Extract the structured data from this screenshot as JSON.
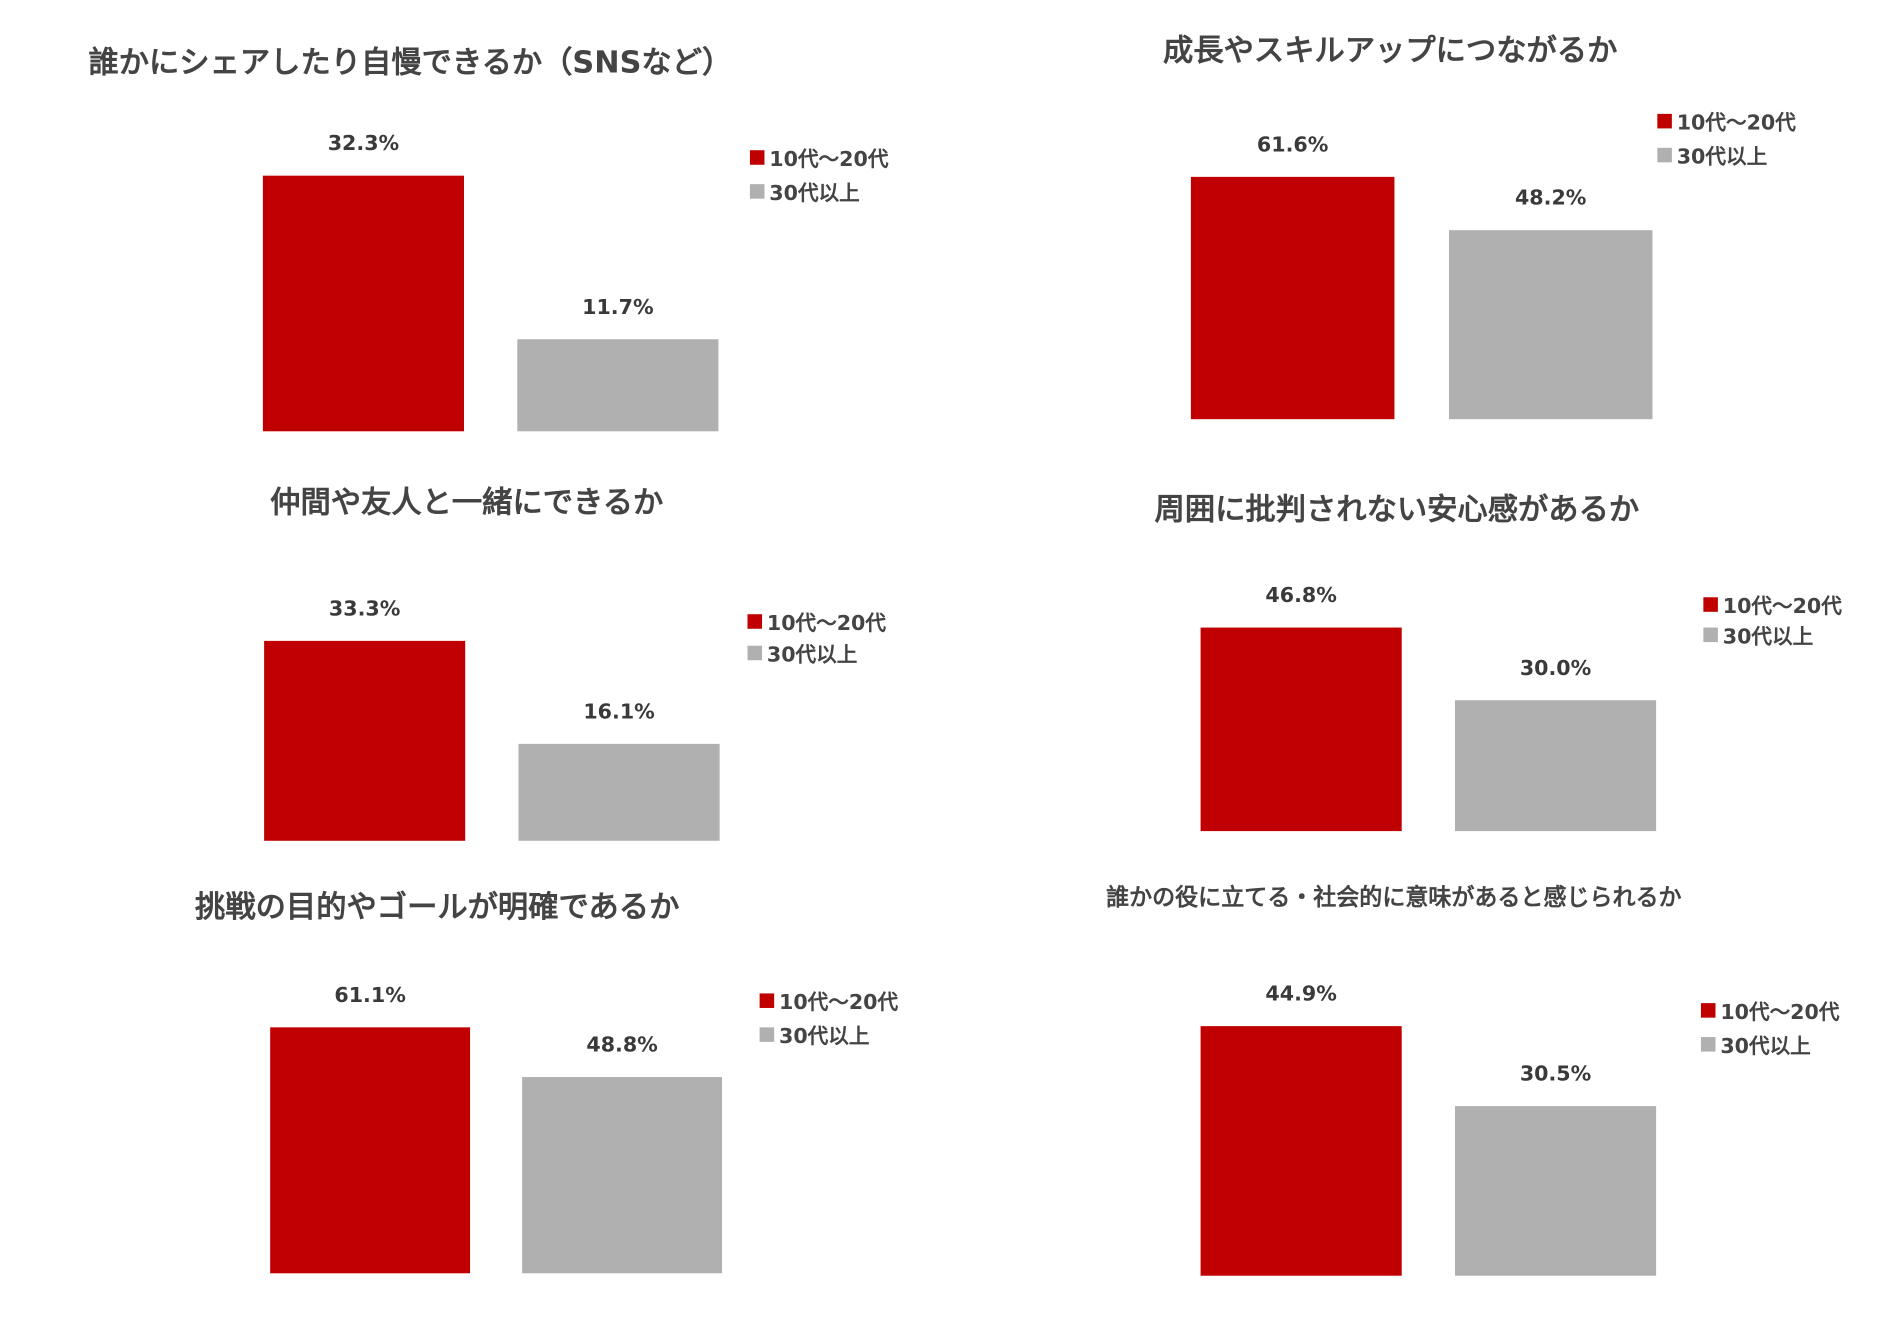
{
  "colors": {
    "young": "#c00000",
    "older": "#b0b0b0"
  },
  "chart_data": [
    {
      "type": "bar",
      "title": "誰かにシェアしたり自慢できるか（SNSなど）",
      "categories": [
        "10代～20代",
        "30代以上"
      ],
      "values": [
        32.3,
        11.7
      ],
      "labels": [
        "32.3%",
        "11.7%"
      ],
      "legend": [
        "10代～20代",
        "30代以上"
      ],
      "legend_placement": "right"
    },
    {
      "type": "bar",
      "title": "成長やスキルアップにつながるか",
      "categories": [
        "10代～20代",
        "30代以上"
      ],
      "values": [
        61.6,
        48.2
      ],
      "labels": [
        "61.6%",
        "48.2%"
      ],
      "legend": [
        "10代～20代",
        "30代以上"
      ],
      "legend_placement": "top-right"
    },
    {
      "type": "bar",
      "title": "仲間や友人と一緒にできるか",
      "categories": [
        "10代～20代",
        "30代以上"
      ],
      "values": [
        33.3,
        16.1
      ],
      "labels": [
        "33.3%",
        "16.1%"
      ],
      "legend": [
        "10代～20代",
        "30代以上"
      ],
      "legend_placement": "right"
    },
    {
      "type": "bar",
      "title": "周囲に批判されない安心感があるか",
      "categories": [
        "10代～20代",
        "30代以上"
      ],
      "values": [
        46.8,
        30.0
      ],
      "labels": [
        "46.8%",
        "30.0%"
      ],
      "legend": [
        "10代～20代",
        "30代以上"
      ],
      "legend_placement": "right"
    },
    {
      "type": "bar",
      "title": "挑戦の目的やゴールが明確であるか",
      "categories": [
        "10代～20代",
        "30代以上"
      ],
      "values": [
        61.1,
        48.8
      ],
      "labels": [
        "61.1%",
        "48.8%"
      ],
      "legend": [
        "10代～20代",
        "30代以上"
      ],
      "legend_placement": "right"
    },
    {
      "type": "bar",
      "title": "誰かの役に立てる・社会的に意味があると感じられるか",
      "categories": [
        "10代～20代",
        "30代以上"
      ],
      "values": [
        44.9,
        30.5
      ],
      "labels": [
        "44.9%",
        "30.5%"
      ],
      "legend": [
        "10代～20代",
        "30代以上"
      ],
      "legend_placement": "right"
    }
  ]
}
